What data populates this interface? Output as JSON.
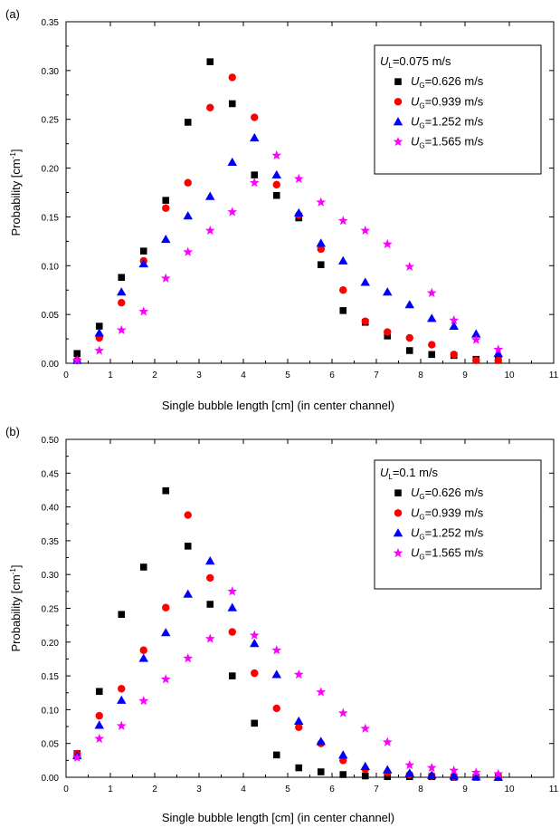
{
  "chart_data": [
    {
      "type": "scatter",
      "panel_label": "(a)",
      "xlabel": "Single bubble length [cm] (in center channel)",
      "ylabel": {
        "main": "Probability [cm",
        "sup": "-1",
        "close": "]"
      },
      "xlim": [
        0,
        11
      ],
      "ylim": [
        0,
        0.35
      ],
      "xticks": [
        "0",
        "1",
        "2",
        "3",
        "4",
        "5",
        "6",
        "7",
        "8",
        "9",
        "10",
        "11"
      ],
      "yticks": [
        "0.00",
        "0.05",
        "0.10",
        "0.15",
        "0.20",
        "0.25",
        "0.30",
        "0.35"
      ],
      "grid": false,
      "legend_position": "top-right",
      "legend_header": {
        "var": "U",
        "sub": "L",
        "value": "=0.075 m/s"
      },
      "x": [
        0.25,
        0.75,
        1.25,
        1.75,
        2.25,
        2.75,
        3.25,
        3.75,
        4.25,
        4.75,
        5.25,
        5.75,
        6.25,
        6.75,
        7.25,
        7.75,
        8.25,
        8.75,
        9.25,
        9.75
      ],
      "series": [
        {
          "name": "=0.626 m/s",
          "var": "U",
          "sub": "G",
          "marker": "square",
          "color": "#000000",
          "values": [
            0.01,
            0.038,
            0.088,
            0.115,
            0.167,
            0.247,
            0.309,
            0.266,
            0.193,
            0.172,
            0.149,
            0.101,
            0.054,
            0.042,
            0.028,
            0.013,
            0.009,
            0.008,
            0.004,
            0.003
          ]
        },
        {
          "name": "=0.939 m/s",
          "var": "U",
          "sub": "G",
          "marker": "circle",
          "color": "#ff0000",
          "values": [
            0.003,
            0.026,
            0.062,
            0.105,
            0.159,
            0.185,
            0.262,
            0.293,
            0.252,
            0.183,
            0.152,
            0.117,
            0.075,
            0.043,
            0.032,
            0.026,
            0.019,
            0.009,
            0.003,
            0.003
          ]
        },
        {
          "name": "=1.252 m/s",
          "var": "U",
          "sub": "G",
          "marker": "triangle",
          "color": "#0000ff",
          "values": [
            0.003,
            0.031,
            0.073,
            0.102,
            0.127,
            0.151,
            0.171,
            0.206,
            0.231,
            0.193,
            0.154,
            0.123,
            0.105,
            0.083,
            0.073,
            0.06,
            0.046,
            0.038,
            0.03,
            0.01
          ]
        },
        {
          "name": "=1.565 m/s",
          "var": "U",
          "sub": "G",
          "marker": "star",
          "color": "#ff00ff",
          "values": [
            0.003,
            0.013,
            0.034,
            0.053,
            0.087,
            0.114,
            0.136,
            0.155,
            0.185,
            0.213,
            0.189,
            0.165,
            0.146,
            0.136,
            0.122,
            0.099,
            0.072,
            0.044,
            0.024,
            0.014
          ]
        }
      ]
    },
    {
      "type": "scatter",
      "panel_label": "(b)",
      "xlabel": "Single bubble length [cm] (in center channel)",
      "ylabel": {
        "main": "Probability [cm",
        "sup": "-1",
        "close": "]"
      },
      "xlim": [
        0,
        11
      ],
      "ylim": [
        0,
        0.5
      ],
      "xticks": [
        "0",
        "1",
        "2",
        "3",
        "4",
        "5",
        "6",
        "7",
        "8",
        "9",
        "10",
        "11"
      ],
      "yticks": [
        "0.00",
        "0.05",
        "0.10",
        "0.15",
        "0.20",
        "0.25",
        "0.30",
        "0.35",
        "0.40",
        "0.45",
        "0.50"
      ],
      "grid": false,
      "legend_position": "top-right",
      "legend_header": {
        "var": "U",
        "sub": "L",
        "value": "=0.1 m/s"
      },
      "x": [
        0.25,
        0.75,
        1.25,
        1.75,
        2.25,
        2.75,
        3.25,
        3.75,
        4.25,
        4.75,
        5.25,
        5.75,
        6.25,
        6.75,
        7.25,
        7.75,
        8.25,
        8.75,
        9.25,
        9.75
      ],
      "series": [
        {
          "name": "=0.626 m/s",
          "var": "U",
          "sub": "G",
          "marker": "square",
          "color": "#000000",
          "values": [
            0.035,
            0.127,
            0.241,
            0.311,
            0.424,
            0.342,
            0.256,
            0.15,
            0.08,
            0.033,
            0.014,
            0.008,
            0.004,
            0.002,
            0.001,
            0.001,
            0.001,
            0.0,
            0.0,
            0.0
          ]
        },
        {
          "name": "=0.939 m/s",
          "var": "U",
          "sub": "G",
          "marker": "circle",
          "color": "#ff0000",
          "values": [
            0.035,
            0.091,
            0.131,
            0.188,
            0.251,
            0.388,
            0.295,
            0.215,
            0.154,
            0.102,
            0.074,
            0.05,
            0.025,
            0.012,
            0.007,
            0.004,
            0.002,
            0.001,
            0.001,
            0.0
          ]
        },
        {
          "name": "=1.252 m/s",
          "var": "U",
          "sub": "G",
          "marker": "triangle",
          "color": "#0000ff",
          "values": [
            0.032,
            0.077,
            0.114,
            0.176,
            0.214,
            0.271,
            0.32,
            0.251,
            0.198,
            0.152,
            0.083,
            0.053,
            0.033,
            0.016,
            0.011,
            0.006,
            0.003,
            0.002,
            0.001,
            0.0
          ]
        },
        {
          "name": "=1.565 m/s",
          "var": "U",
          "sub": "G",
          "marker": "star",
          "color": "#ff00ff",
          "values": [
            0.029,
            0.057,
            0.076,
            0.113,
            0.145,
            0.176,
            0.205,
            0.275,
            0.21,
            0.188,
            0.152,
            0.126,
            0.095,
            0.072,
            0.052,
            0.018,
            0.014,
            0.01,
            0.007,
            0.005
          ]
        }
      ]
    }
  ]
}
